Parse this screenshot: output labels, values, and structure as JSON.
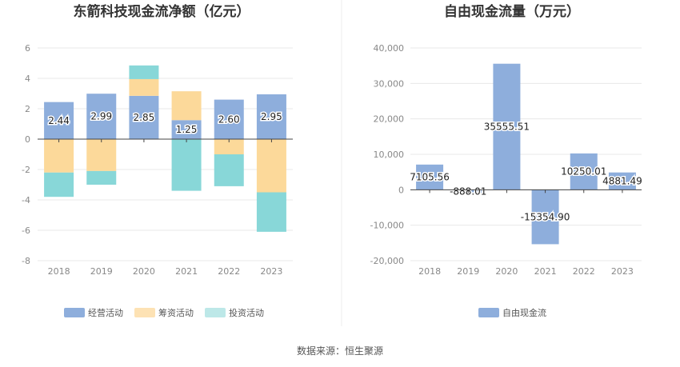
{
  "source": "数据来源：恒生聚源",
  "colors": {
    "operating": "#8eaedc",
    "financing": "#fcd99a",
    "investing": "#88d7d8",
    "free_cash_flow": "#8eaedc",
    "axis": "#444444",
    "grid": "#e8e8e8",
    "legend_investing": "#bde8e8"
  },
  "chart_data": [
    {
      "type": "bar",
      "stacked": true,
      "title": "东箭科技现金流净额（亿元）",
      "categories": [
        "2018",
        "2019",
        "2020",
        "2021",
        "2022",
        "2023"
      ],
      "series": [
        {
          "name": "经营活动",
          "values": [
            2.44,
            2.99,
            2.85,
            1.25,
            2.6,
            2.95
          ]
        },
        {
          "name": "筹资活动",
          "values": [
            -2.2,
            -2.1,
            1.1,
            1.9,
            -1.0,
            -3.5
          ]
        },
        {
          "name": "投资活动",
          "values": [
            -1.6,
            -0.9,
            0.9,
            -3.4,
            -2.1,
            -2.6
          ]
        }
      ],
      "data_labels": [
        "2.44",
        "2.99",
        "2.85",
        "1.25",
        "2.60",
        "2.95"
      ],
      "yticks": [
        "6",
        "4",
        "2",
        "0",
        "-2",
        "-4",
        "-6",
        "-8"
      ],
      "ylim": [
        -8,
        6
      ],
      "grid": true,
      "legend_position": "bottom"
    },
    {
      "type": "bar",
      "title": "自由现金流量（万元）",
      "categories": [
        "2018",
        "2019",
        "2020",
        "2021",
        "2022",
        "2023"
      ],
      "series": [
        {
          "name": "自由现金流",
          "values": [
            7105.56,
            -888.01,
            35555.51,
            -15354.9,
            10250.01,
            4881.49
          ]
        }
      ],
      "data_labels": [
        "7105.56",
        "-888.01",
        "35555.51",
        "-15354.90",
        "10250.01",
        "4881.49"
      ],
      "yticks": [
        "40,000",
        "30,000",
        "20,000",
        "10,000",
        "0",
        "-10,000",
        "-20,000"
      ],
      "ylim": [
        -20000,
        40000
      ],
      "grid": true,
      "legend_position": "bottom"
    }
  ]
}
